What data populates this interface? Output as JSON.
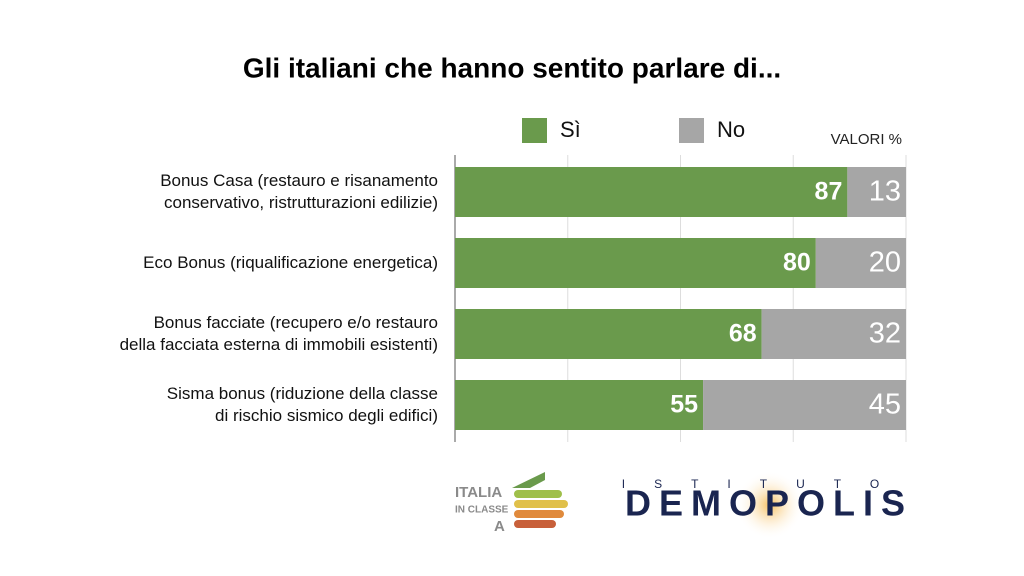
{
  "chart_data": {
    "type": "stacked-bar-horizontal",
    "title": "Gli italiani che hanno sentito parlare di...",
    "unit_note": "VALORI %",
    "categories": [
      "Bonus Casa (restauro e risanamento\nconservativo, ristrutturazioni edilizie)",
      "Eco Bonus (riqualificazione energetica)",
      "Bonus facciate (recupero e/o restauro\ndella facciata esterna di immobili esistenti)",
      "Sisma bonus (riduzione della classe\ndi rischio sismico degli edifici)"
    ],
    "series": [
      {
        "name": "Sì",
        "color": "#6a9a4c",
        "values": [
          87,
          80,
          68,
          55
        ]
      },
      {
        "name": "No",
        "color": "#a6a6a6",
        "values": [
          13,
          20,
          32,
          45
        ]
      }
    ],
    "xlim": [
      0,
      100
    ],
    "xticks": [
      0,
      25,
      50,
      75,
      100
    ],
    "grid": true,
    "legend": "top"
  },
  "logos": {
    "left": [
      "ITALIA",
      "IN CLASSE",
      "A"
    ],
    "right": [
      "ISTITUTO",
      "DEMOPOLIS"
    ]
  }
}
